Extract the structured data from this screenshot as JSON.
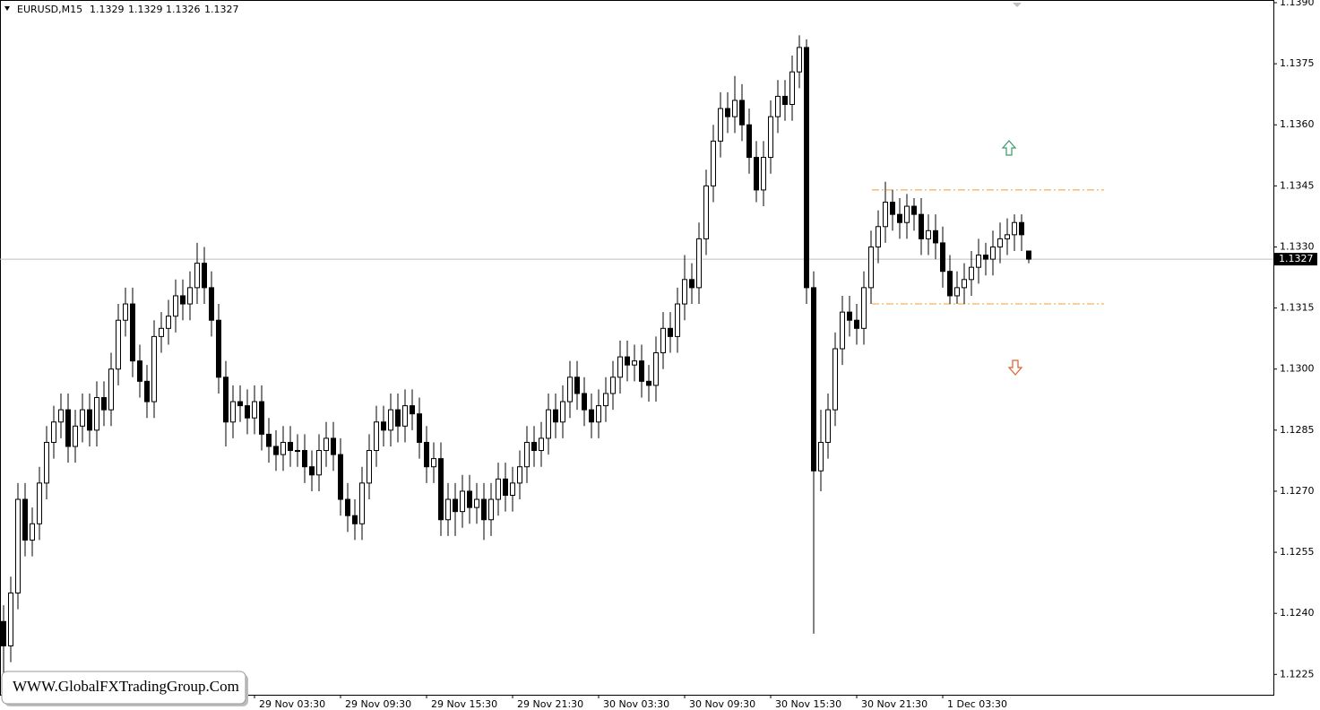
{
  "chart_data": {
    "type": "candlestick",
    "symbol": "EURUSD,M15",
    "header_values": [
      1.1329,
      1.1329,
      1.1326,
      1.1327
    ],
    "current_price": 1.1327,
    "levels": [
      1.1344,
      1.1316
    ],
    "watermark": "WWW.GlobalFXTradingGroup.Com",
    "ylim": [
      1.122,
      1.139
    ],
    "yticks": [
      1.1225,
      {
        "value": 1.124,
        "label": "1.1240"
      },
      1.1255,
      {
        "value": 1.127,
        "label": "1.1270"
      },
      1.1285,
      {
        "value": 1.13,
        "label": "1.1300"
      },
      1.1315,
      {
        "value": 1.133,
        "label": "1.1330"
      },
      1.1345,
      {
        "value": 1.136,
        "label": "1.1360"
      },
      1.1375,
      {
        "value": 1.139,
        "label": "1.1390"
      }
    ],
    "categories": [
      null,
      null,
      null,
      null,
      null,
      null,
      null,
      null,
      null,
      null,
      null,
      null,
      null,
      null,
      null,
      null,
      null,
      null,
      null,
      null,
      null,
      null,
      null,
      null,
      null,
      null,
      null,
      null,
      null,
      null,
      null,
      null,
      null,
      null,
      null,
      "29 Nov 03:30",
      null,
      null,
      null,
      null,
      null,
      null,
      null,
      null,
      null,
      null,
      null,
      "29 Nov 09:30",
      null,
      null,
      null,
      null,
      null,
      null,
      null,
      null,
      null,
      null,
      null,
      "29 Nov 15:30",
      null,
      null,
      null,
      null,
      null,
      null,
      null,
      null,
      null,
      null,
      null,
      "29 Nov 21:30",
      null,
      null,
      null,
      null,
      null,
      null,
      null,
      null,
      null,
      null,
      null,
      "30 Nov 03:30",
      null,
      null,
      null,
      null,
      null,
      null,
      null,
      null,
      null,
      null,
      null,
      "30 Nov 09:30",
      null,
      null,
      null,
      null,
      null,
      null,
      null,
      null,
      null,
      null,
      null,
      "30 Nov 15:30",
      null,
      null,
      null,
      null,
      null,
      null,
      null,
      null,
      null,
      null,
      null,
      "30 Nov 21:30",
      null,
      null,
      null,
      null,
      null,
      null,
      null,
      null,
      null,
      null,
      null,
      "1 Dec 03:30",
      null,
      null,
      null,
      null,
      null,
      null,
      null,
      null,
      null,
      null,
      null,
      null
    ],
    "open": [
      1.1238,
      1.1232,
      1.1245,
      1.1268,
      1.1258,
      1.1262,
      1.1272,
      1.1282,
      1.1287,
      1.129,
      1.1281,
      1.1286,
      1.129,
      1.1285,
      1.1293,
      1.129,
      1.13,
      1.1312,
      1.1316,
      1.1302,
      1.1297,
      1.1292,
      1.1308,
      1.131,
      1.1313,
      1.1318,
      1.1316,
      1.132,
      1.1326,
      1.132,
      1.1312,
      1.1298,
      1.1287,
      1.1292,
      1.1291,
      1.1288,
      1.1292,
      1.1284,
      1.1281,
      1.1279,
      1.1282,
      1.128,
      1.128,
      1.1276,
      1.1274,
      1.128,
      1.1283,
      1.1279,
      1.1268,
      1.1264,
      1.1262,
      1.1272,
      1.128,
      1.1287,
      1.1285,
      1.129,
      1.1286,
      1.1291,
      1.1289,
      1.1282,
      1.1276,
      1.1278,
      1.1263,
      1.1268,
      1.1265,
      1.127,
      1.1266,
      1.1268,
      1.1263,
      1.1268,
      1.1273,
      1.1269,
      1.1272,
      1.1276,
      1.1282,
      1.128,
      1.1283,
      1.129,
      1.1287,
      1.1292,
      1.1298,
      1.1294,
      1.129,
      1.1287,
      1.1291,
      1.1294,
      1.1298,
      1.1303,
      1.1301,
      1.1302,
      1.1297,
      1.1296,
      1.1304,
      1.131,
      1.1308,
      1.1316,
      1.1322,
      1.132,
      1.1332,
      1.1345,
      1.1356,
      1.1364,
      1.1362,
      1.1366,
      1.136,
      1.1352,
      1.1344,
      1.1352,
      1.1362,
      1.1367,
      1.1365,
      1.1373,
      1.1379,
      1.132,
      1.1275,
      1.1282,
      1.129,
      1.1305,
      1.1314,
      1.1312,
      1.131,
      1.132,
      1.133,
      1.1335,
      1.1341,
      1.1338,
      1.1336,
      1.134,
      1.1338,
      1.1332,
      1.1334,
      1.1331,
      1.1324,
      1.1318,
      1.132,
      1.1322,
      1.1325,
      1.1328,
      1.1327,
      1.133,
      1.1332,
      1.1333,
      1.1336,
      1.1329
    ],
    "high": [
      1.1242,
      1.1249,
      1.1272,
      1.1272,
      1.1266,
      1.1276,
      1.1286,
      1.1291,
      1.1294,
      1.1294,
      1.129,
      1.1294,
      1.1294,
      1.1297,
      1.1297,
      1.1304,
      1.1316,
      1.132,
      1.132,
      1.1306,
      1.1301,
      1.1312,
      1.1314,
      1.1317,
      1.1322,
      1.1322,
      1.1324,
      1.1331,
      1.133,
      1.1324,
      1.1316,
      1.1302,
      1.1296,
      1.1296,
      1.1295,
      1.1296,
      1.1296,
      1.1288,
      1.1285,
      1.1286,
      1.1286,
      1.1284,
      1.1284,
      1.128,
      1.1284,
      1.1287,
      1.1287,
      1.1283,
      1.1272,
      1.1268,
      1.1276,
      1.1284,
      1.1291,
      1.1291,
      1.1294,
      1.1294,
      1.1295,
      1.1295,
      1.1293,
      1.1286,
      1.1282,
      1.1282,
      1.1272,
      1.1272,
      1.1274,
      1.1274,
      1.1272,
      1.1272,
      1.1272,
      1.1277,
      1.1277,
      1.1276,
      1.128,
      1.1286,
      1.1286,
      1.1287,
      1.1294,
      1.1294,
      1.1296,
      1.1302,
      1.1302,
      1.1298,
      1.1294,
      1.1295,
      1.1298,
      1.1302,
      1.1307,
      1.1307,
      1.1306,
      1.1306,
      1.1301,
      1.1308,
      1.1314,
      1.1314,
      1.132,
      1.1328,
      1.1326,
      1.1336,
      1.1349,
      1.136,
      1.1368,
      1.1368,
      1.1372,
      1.137,
      1.1364,
      1.1356,
      1.1356,
      1.1366,
      1.1371,
      1.1371,
      1.1377,
      1.1382,
      1.1381,
      1.1324,
      1.129,
      1.1294,
      1.1309,
      1.1318,
      1.1318,
      1.1316,
      1.1324,
      1.1334,
      1.1339,
      1.1346,
      1.1344,
      1.1342,
      1.1343,
      1.1342,
      1.1342,
      1.1338,
      1.1338,
      1.1335,
      1.1328,
      1.1324,
      1.1326,
      1.1329,
      1.1332,
      1.1331,
      1.1334,
      1.1336,
      1.1337,
      1.1338,
      1.1338,
      1.1329
    ],
    "low": [
      1.1225,
      1.1228,
      1.1241,
      1.1254,
      1.1254,
      1.1258,
      1.1268,
      1.1278,
      1.1283,
      1.1277,
      1.1277,
      1.1282,
      1.1281,
      1.1281,
      1.1286,
      1.1286,
      1.1296,
      1.1308,
      1.1298,
      1.1293,
      1.1288,
      1.1288,
      1.1304,
      1.1306,
      1.1309,
      1.1312,
      1.1312,
      1.1316,
      1.1316,
      1.1308,
      1.1294,
      1.1281,
      1.1283,
      1.1287,
      1.1284,
      1.1284,
      1.128,
      1.1277,
      1.1275,
      1.1275,
      1.1276,
      1.1276,
      1.1272,
      1.127,
      1.127,
      1.1276,
      1.1275,
      1.1264,
      1.126,
      1.1258,
      1.1258,
      1.1268,
      1.1276,
      1.1281,
      1.1281,
      1.1282,
      1.1282,
      1.1285,
      1.1278,
      1.1272,
      1.1272,
      1.1259,
      1.1259,
      1.1259,
      1.1261,
      1.1262,
      1.1262,
      1.1258,
      1.1259,
      1.1264,
      1.1265,
      1.1265,
      1.1268,
      1.1272,
      1.1276,
      1.1276,
      1.1279,
      1.1283,
      1.1283,
      1.1288,
      1.129,
      1.1286,
      1.1283,
      1.1283,
      1.1287,
      1.129,
      1.1294,
      1.1297,
      1.1297,
      1.1293,
      1.1292,
      1.1292,
      1.13,
      1.1304,
      1.1304,
      1.1312,
      1.1316,
      1.1316,
      1.1328,
      1.1341,
      1.1352,
      1.1358,
      1.1358,
      1.1356,
      1.1348,
      1.1341,
      1.134,
      1.1348,
      1.1358,
      1.1361,
      1.1361,
      1.1369,
      1.1316,
      1.1235,
      1.127,
      1.1278,
      1.1286,
      1.1301,
      1.1308,
      1.1306,
      1.1306,
      1.1316,
      1.1326,
      1.1331,
      1.1334,
      1.1332,
      1.1332,
      1.1334,
      1.1328,
      1.1328,
      1.1327,
      1.132,
      1.1316,
      1.1316,
      1.1316,
      1.1318,
      1.1321,
      1.1323,
      1.1323,
      1.1326,
      1.1328,
      1.1329,
      1.1329,
      1.1326
    ],
    "close": [
      1.1232,
      1.1245,
      1.1268,
      1.1258,
      1.1262,
      1.1272,
      1.1282,
      1.1287,
      1.129,
      1.1281,
      1.1286,
      1.129,
      1.1285,
      1.1293,
      1.129,
      1.13,
      1.1312,
      1.1316,
      1.1302,
      1.1297,
      1.1292,
      1.1308,
      1.131,
      1.1313,
      1.1318,
      1.1316,
      1.132,
      1.1326,
      1.132,
      1.1312,
      1.1298,
      1.1287,
      1.1292,
      1.1291,
      1.1288,
      1.1292,
      1.1284,
      1.1281,
      1.1279,
      1.1282,
      1.128,
      1.128,
      1.1276,
      1.1274,
      1.128,
      1.1283,
      1.1279,
      1.1268,
      1.1264,
      1.1262,
      1.1272,
      1.128,
      1.1287,
      1.1285,
      1.129,
      1.1286,
      1.1291,
      1.1289,
      1.1282,
      1.1276,
      1.1278,
      1.1263,
      1.1268,
      1.1265,
      1.127,
      1.1266,
      1.1268,
      1.1263,
      1.1268,
      1.1273,
      1.1269,
      1.1272,
      1.1276,
      1.1282,
      1.128,
      1.1283,
      1.129,
      1.1287,
      1.1292,
      1.1298,
      1.1294,
      1.129,
      1.1287,
      1.1291,
      1.1294,
      1.1298,
      1.1303,
      1.1301,
      1.1302,
      1.1297,
      1.1296,
      1.1304,
      1.131,
      1.1308,
      1.1316,
      1.1322,
      1.132,
      1.1332,
      1.1345,
      1.1356,
      1.1364,
      1.1362,
      1.1366,
      1.136,
      1.1352,
      1.1344,
      1.1352,
      1.1362,
      1.1367,
      1.1365,
      1.1373,
      1.1379,
      1.132,
      1.1275,
      1.1282,
      1.129,
      1.1305,
      1.1314,
      1.1312,
      1.131,
      1.132,
      1.133,
      1.1335,
      1.1341,
      1.1338,
      1.1336,
      1.134,
      1.1338,
      1.1332,
      1.1334,
      1.1331,
      1.1324,
      1.1318,
      1.132,
      1.1322,
      1.1325,
      1.1328,
      1.1327,
      1.133,
      1.1332,
      1.1333,
      1.1336,
      1.1333,
      1.1327
    ],
    "up_color": "#ffffff",
    "down_color": "#000000",
    "wick_color": "#000000",
    "level_color": "#f39c3a"
  }
}
